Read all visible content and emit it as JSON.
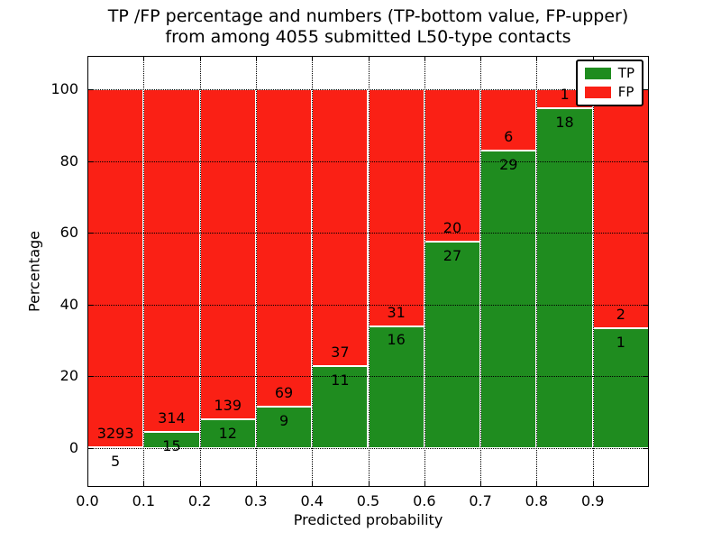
{
  "chart_data": {
    "type": "bar",
    "stacked": true,
    "title_line1": "TP /FP percentage and numbers (TP-bottom value, FP-upper)",
    "title_line2": "from among 4055 submitted L50-type contacts",
    "xlabel": "Predicted probability",
    "ylabel": "Percentage",
    "xlim": [
      0.0,
      1.0
    ],
    "ylim": [
      -10.8,
      109.3
    ],
    "x_tick_values": [
      0.0,
      0.1,
      0.2,
      0.3,
      0.4,
      0.5,
      0.6,
      0.7,
      0.8,
      0.9
    ],
    "x_tick_labels": [
      "0.0",
      "0.1",
      "0.2",
      "0.3",
      "0.4",
      "0.5",
      "0.6",
      "0.7",
      "0.8",
      "0.9"
    ],
    "y_tick_values": [
      0,
      20,
      40,
      60,
      80,
      100
    ],
    "y_tick_labels": [
      "0",
      "20",
      "40",
      "60",
      "80",
      "100"
    ],
    "x_gridline_values": [
      0.1,
      0.2,
      0.3,
      0.4,
      0.5,
      0.6,
      0.7,
      0.8,
      0.9
    ],
    "grid_style": "dotted",
    "colors": {
      "tp": "#1f8c1f",
      "fp": "#fa2015",
      "bar_edge": "#ffffff",
      "text": "#000000",
      "background": "#ffffff"
    },
    "legend": {
      "position": "upper right",
      "entries": [
        {
          "label": "TP",
          "color_key": "tp"
        },
        {
          "label": "FP",
          "color_key": "fp"
        }
      ]
    },
    "bins": [
      {
        "x_range": [
          0.0,
          0.1
        ],
        "tp": 5,
        "fp": 3293,
        "tp_percent": 0.15
      },
      {
        "x_range": [
          0.1,
          0.2
        ],
        "tp": 15,
        "fp": 314,
        "tp_percent": 4.56
      },
      {
        "x_range": [
          0.2,
          0.3
        ],
        "tp": 12,
        "fp": 139,
        "tp_percent": 7.95
      },
      {
        "x_range": [
          0.3,
          0.4
        ],
        "tp": 9,
        "fp": 69,
        "tp_percent": 11.54
      },
      {
        "x_range": [
          0.4,
          0.5
        ],
        "tp": 11,
        "fp": 37,
        "tp_percent": 22.92
      },
      {
        "x_range": [
          0.5,
          0.6
        ],
        "tp": 16,
        "fp": 31,
        "tp_percent": 34.04
      },
      {
        "x_range": [
          0.6,
          0.7
        ],
        "tp": 27,
        "fp": 20,
        "tp_percent": 57.45
      },
      {
        "x_range": [
          0.7,
          0.8
        ],
        "tp": 29,
        "fp": 6,
        "tp_percent": 82.86
      },
      {
        "x_range": [
          0.8,
          0.9
        ],
        "tp": 18,
        "fp": 1,
        "tp_percent": 94.74
      },
      {
        "x_range": [
          0.9,
          1.0
        ],
        "tp": 1,
        "fp": 2,
        "tp_percent": 33.33
      }
    ]
  }
}
